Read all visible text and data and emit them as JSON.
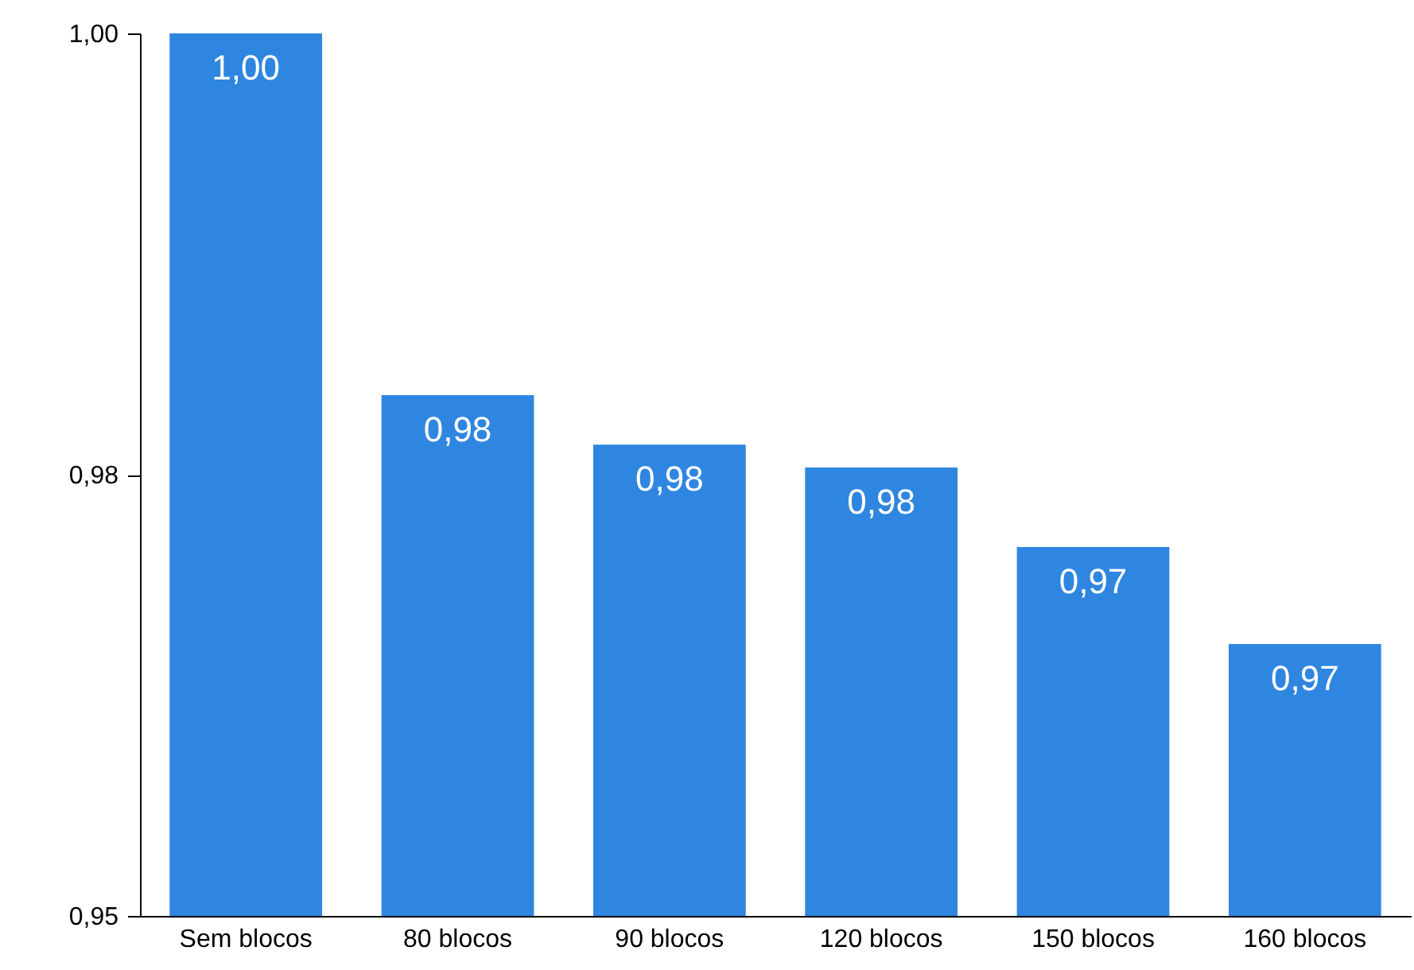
{
  "chart_data": {
    "type": "bar",
    "categories": [
      "Sem blocos",
      "80 blocos",
      "90 blocos",
      "120 blocos",
      "150 blocos",
      "160 blocos"
    ],
    "values": [
      1.0,
      0.9795,
      0.9767,
      0.9754,
      0.9709,
      0.9654
    ],
    "value_labels": [
      "1,00",
      "0,98",
      "0,98",
      "0,98",
      "0,97",
      "0,97"
    ],
    "color": "#2f86e0",
    "ylim": [
      0.95,
      1.0
    ],
    "yticks": [
      {
        "value": 0.95,
        "label": "0,95"
      },
      {
        "value": 0.975,
        "label": "0,98"
      },
      {
        "value": 1.0,
        "label": "1,00"
      }
    ],
    "grid": false
  }
}
